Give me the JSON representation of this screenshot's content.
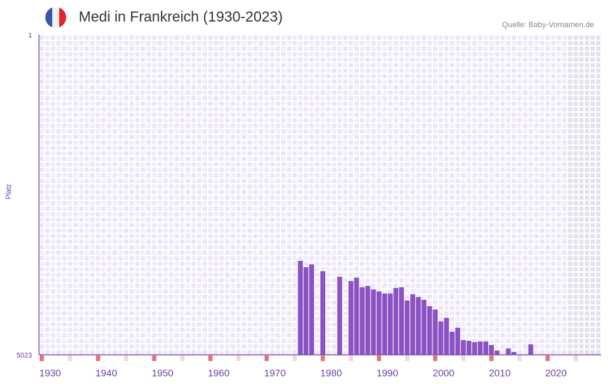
{
  "header": {
    "title": "Medi in Frankreich (1930-2023)",
    "source": "Quelle: Baby-Vornamen.de",
    "flag": "france-flag-icon"
  },
  "colors": {
    "bar": "#8b52c4",
    "axis": "#6a3fa0",
    "decade_marker": "#e57373",
    "half_marker": "#f4d6de",
    "grid_a": "#f1ecfa",
    "grid_b": "#ebe4f6",
    "future": "#e4e0ec"
  },
  "chart_data": {
    "type": "bar",
    "title": "Medi in Frankreich (1930-2023)",
    "ylabel": "Platz",
    "ylim": [
      5023,
      1
    ],
    "y_ticks": [
      "1",
      "5023"
    ],
    "xlim": [
      1930,
      2030
    ],
    "x_ticks": [
      "1930",
      "1940",
      "1950",
      "1960",
      "1970",
      "1980",
      "1990",
      "2000",
      "2010",
      "2020"
    ],
    "last_data_year": 2023,
    "x": [
      1976,
      1977,
      1978,
      1980,
      1983,
      1985,
      1986,
      1987,
      1988,
      1989,
      1990,
      1991,
      1992,
      1993,
      1994,
      1995,
      1996,
      1997,
      1998,
      1999,
      2000,
      2001,
      2002,
      2003,
      2004,
      2005,
      2006,
      2007,
      2008,
      2009,
      2010,
      2011,
      2013,
      2014,
      2017
    ],
    "values": [
      3549,
      3647,
      3604,
      3713,
      3800,
      3866,
      3811,
      3964,
      3942,
      3997,
      4029,
      4062,
      4062,
      3975,
      3964,
      4171,
      4073,
      4117,
      4160,
      4259,
      4313,
      4499,
      4444,
      4663,
      4597,
      4794,
      4805,
      4826,
      4815,
      4815,
      4870,
      4957,
      4924,
      4979,
      4859
    ]
  }
}
